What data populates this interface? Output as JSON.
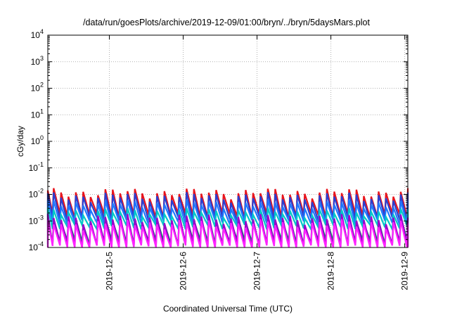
{
  "chart_data": {
    "type": "line",
    "title": "/data/run/goesPlots/archive/2019-12-09/01:00/bryn/../bryn/5daysMars.plot",
    "xlabel": "Coordinated Universal Time (UTC)",
    "ylabel": "cGy/day",
    "yscale": "log",
    "ylim_exponents": [
      -4,
      4
    ],
    "y_ticks": [
      {
        "base": "10",
        "exp": "-4"
      },
      {
        "base": "10",
        "exp": "-3"
      },
      {
        "base": "10",
        "exp": "-2"
      },
      {
        "base": "10",
        "exp": "-1"
      },
      {
        "base": "10",
        "exp": "0"
      },
      {
        "base": "10",
        "exp": "1"
      },
      {
        "base": "10",
        "exp": "2"
      },
      {
        "base": "10",
        "exp": "3"
      },
      {
        "base": "10",
        "exp": "4"
      }
    ],
    "xlim": [
      "2019-12-04 04:00",
      "2019-12-09 01:00"
    ],
    "x_ticks": [
      "2019-12-5",
      "2019-12-6",
      "2019-12-7",
      "2019-12-8",
      "2019-12-9"
    ],
    "x_tick_dates": [
      "2019-12-05",
      "2019-12-06",
      "2019-12-07",
      "2019-12-08",
      "2019-12-09"
    ],
    "grid": true,
    "legend": "none",
    "sawtooth_period_hours": 2.4,
    "series": [
      {
        "color": "#e8141c",
        "peak": 0.012,
        "trough": 0.0016
      },
      {
        "color": "#2a3fd0",
        "peak": 0.0085,
        "trough": 0.0012
      },
      {
        "color": "#1e78ff",
        "peak": 0.0045,
        "trough": 0.0009
      },
      {
        "color": "#00c8c8",
        "peak": 0.0022,
        "trough": 0.0006
      },
      {
        "color": "#008c5a",
        "peak": 0.0011,
        "trough": 0.00016
      },
      {
        "color": "#9900cc",
        "peak": 0.0013,
        "trough": 0.00012
      },
      {
        "color": "#ff22ff",
        "peak": 0.0008,
        "trough": 0.0001
      }
    ]
  }
}
